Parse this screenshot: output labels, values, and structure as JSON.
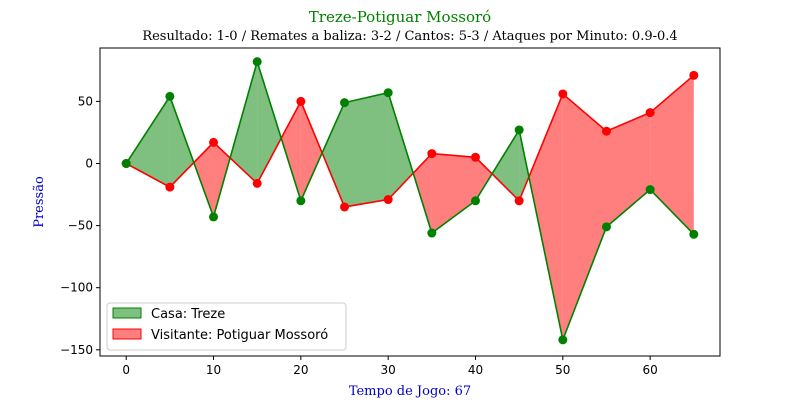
{
  "chart_data": {
    "type": "line",
    "title": "Treze-Potiguar Mossoró",
    "subtitle": "Resultado: 1-0 / Remates a baliza: 3-2 / Cantos: 5-3 / Ataques por Minuto: 0.9-0.4",
    "xlabel": "Tempo de Jogo: 67",
    "ylabel": "Pressão",
    "x": [
      0,
      5,
      10,
      15,
      20,
      25,
      30,
      35,
      40,
      45,
      50,
      55,
      60,
      65
    ],
    "xlim": [
      -3,
      68
    ],
    "ylim": [
      -155,
      93
    ],
    "xticks": [
      0,
      10,
      20,
      30,
      40,
      50,
      60
    ],
    "yticks": [
      -150,
      -100,
      -50,
      0,
      50
    ],
    "ytick_labels": [
      "−150",
      "−100",
      "−50",
      "0",
      "50"
    ],
    "grid": false,
    "legend_position": "lower-left",
    "series": [
      {
        "name": "Casa: Treze",
        "color": "#008000",
        "fill_color": "#008000",
        "values": [
          0,
          54,
          -43,
          82,
          -30,
          49,
          57,
          -56,
          -30,
          27,
          -142,
          -51,
          -21,
          -57
        ]
      },
      {
        "name": "Visitante: Potiguar Mossoró",
        "color": "#ff0000",
        "fill_color": "#ff0000",
        "values": [
          0,
          -19,
          17,
          -16,
          50,
          -35,
          -29,
          8,
          5,
          -30,
          56,
          26,
          41,
          71
        ]
      }
    ]
  }
}
